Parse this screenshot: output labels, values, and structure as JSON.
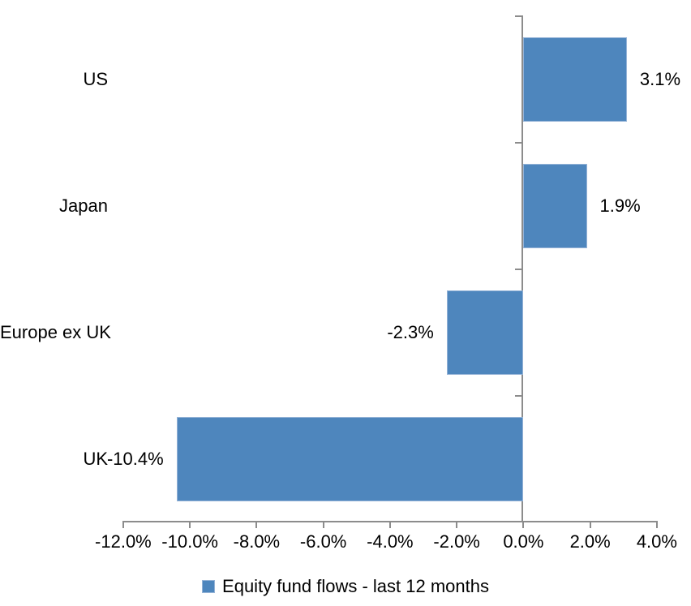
{
  "chart_data": {
    "type": "bar",
    "orientation": "horizontal",
    "title": "",
    "categories": [
      "US",
      "Japan",
      "Europe ex UK",
      "UK"
    ],
    "values": [
      3.1,
      1.9,
      -2.3,
      -10.4
    ],
    "data_labels": [
      "3.1%",
      "1.9%",
      "-2.3%",
      "-10.4%"
    ],
    "series": [
      {
        "name": "Equity fund flows - last 12 months",
        "values": [
          3.1,
          1.9,
          -2.3,
          -10.4
        ]
      }
    ],
    "legend": [
      "Equity fund flows - last 12 months"
    ],
    "legend_position": "bottom-center",
    "grid": "off",
    "x_axis": {
      "min": -12,
      "max": 4,
      "tick_values": [
        -12,
        -10,
        -8,
        -6,
        -4,
        -2,
        0,
        2,
        4
      ],
      "tick_labels": [
        "-12.0%",
        "-10.0%",
        "-8.0%",
        "-6.0%",
        "-4.0%",
        "-2.0%",
        "0.0%",
        "2.0%",
        "4.0%"
      ]
    },
    "colors": {
      "bar_fill": "#4E86BD",
      "bar_border": "#95B3D7",
      "axis": "#8C8C8C",
      "text": "#000000",
      "background": "#FFFFFF"
    }
  }
}
